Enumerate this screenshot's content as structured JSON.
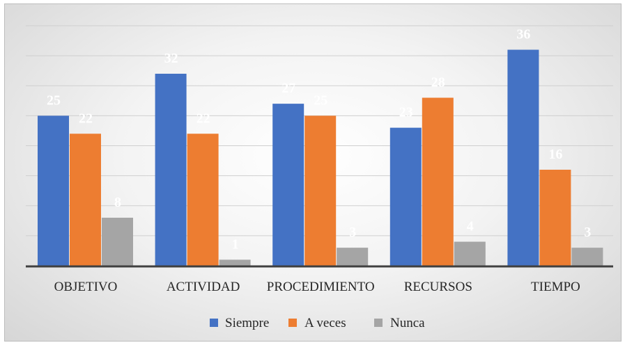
{
  "chart_data": {
    "type": "bar",
    "categories": [
      "OBJETIVO",
      "ACTIVIDAD",
      "PROCEDIMIENTO",
      "RECURSOS",
      "TIEMPO"
    ],
    "series": [
      {
        "name": "Siempre",
        "color": "#4472C4",
        "values": [
          25,
          32,
          27,
          23,
          36
        ]
      },
      {
        "name": "A veces",
        "color": "#ED7D31",
        "values": [
          22,
          22,
          25,
          28,
          16
        ]
      },
      {
        "name": "Nunca",
        "color": "#A5A5A5",
        "values": [
          8,
          1,
          3,
          4,
          3
        ]
      }
    ],
    "ylim": [
      0,
      40
    ],
    "gridlines": true,
    "grid_step": 5,
    "legend_position": "bottom",
    "data_labels": [
      "25",
      "32",
      "27",
      "23",
      "36",
      "22",
      "22",
      "25",
      "28",
      "16",
      "8",
      "1",
      "3",
      "4",
      "3"
    ]
  }
}
